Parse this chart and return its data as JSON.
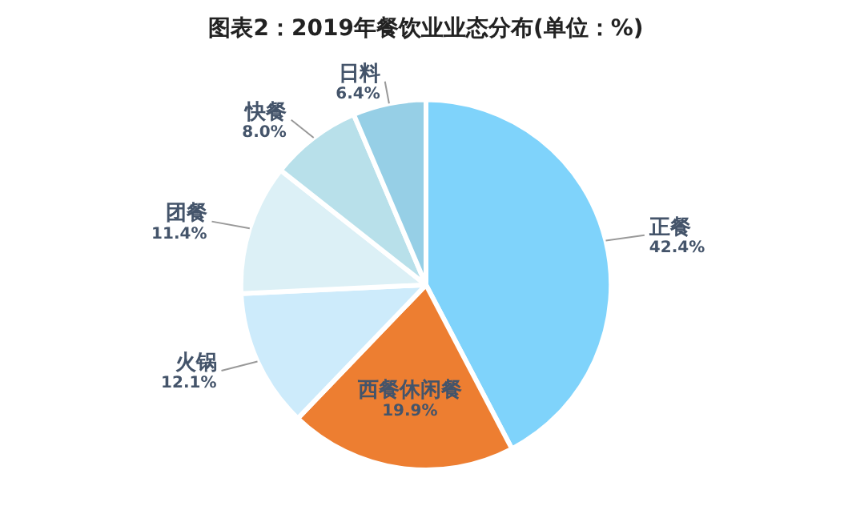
{
  "chart_data": {
    "type": "pie",
    "title": "图表2：2019年餐饮业业态分布(单位：%)",
    "categories": [
      "正餐",
      "西餐休闲餐",
      "火锅",
      "团餐",
      "快餐",
      "日料"
    ],
    "values": [
      42.4,
      19.9,
      12.1,
      11.4,
      8.0,
      6.4
    ],
    "value_labels": [
      "42.4%",
      "19.9%",
      "12.1%",
      "11.4%",
      "8.0%",
      "6.4%"
    ],
    "colors": [
      "#7fd3fb",
      "#ed7e31",
      "#cdebfb",
      "#dcf0f6",
      "#b8e0ea",
      "#96cfe6"
    ],
    "legend": false
  }
}
